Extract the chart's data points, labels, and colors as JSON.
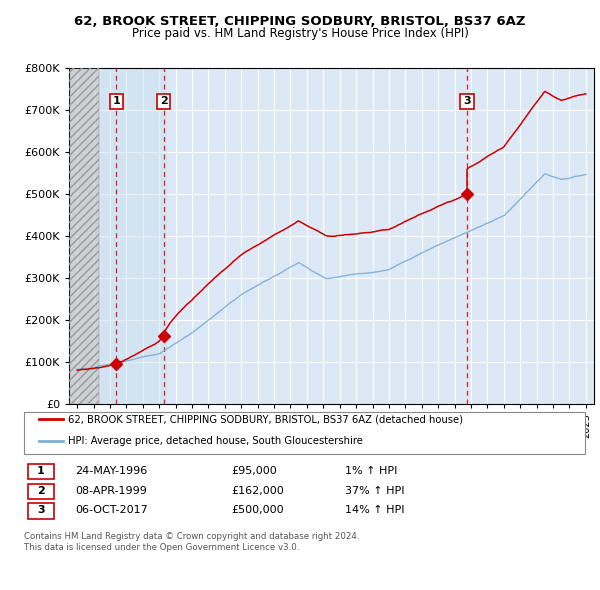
{
  "title": "62, BROOK STREET, CHIPPING SODBURY, BRISTOL, BS37 6AZ",
  "subtitle": "Price paid vs. HM Land Registry's House Price Index (HPI)",
  "ylim": [
    0,
    800000
  ],
  "yticks": [
    0,
    100000,
    200000,
    300000,
    400000,
    500000,
    600000,
    700000,
    800000
  ],
  "ytick_labels": [
    "£0",
    "£100K",
    "£200K",
    "£300K",
    "£400K",
    "£500K",
    "£600K",
    "£700K",
    "£800K"
  ],
  "xlim": [
    1993.5,
    2025.5
  ],
  "xticks": [
    1994,
    1995,
    1996,
    1997,
    1998,
    1999,
    2000,
    2001,
    2002,
    2003,
    2004,
    2005,
    2006,
    2007,
    2008,
    2009,
    2010,
    2011,
    2012,
    2013,
    2014,
    2015,
    2016,
    2017,
    2018,
    2019,
    2020,
    2021,
    2022,
    2023,
    2024,
    2025
  ],
  "sale_dates": [
    1996.39,
    1999.27,
    2017.76
  ],
  "sale_prices": [
    95000,
    162000,
    500000
  ],
  "sale_labels": [
    "1",
    "2",
    "3"
  ],
  "legend_entries": [
    "62, BROOK STREET, CHIPPING SODBURY, BRISTOL, BS37 6AZ (detached house)",
    "HPI: Average price, detached house, South Gloucestershire"
  ],
  "legend_colors": [
    "#cc0000",
    "#7bafd4"
  ],
  "table_rows": [
    [
      "1",
      "24-MAY-1996",
      "£95,000",
      "1% ↑ HPI"
    ],
    [
      "2",
      "08-APR-1999",
      "£162,000",
      "37% ↑ HPI"
    ],
    [
      "3",
      "06-OCT-2017",
      "£500,000",
      "14% ↑ HPI"
    ]
  ],
  "footnote": "Contains HM Land Registry data © Crown copyright and database right 2024.\nThis data is licensed under the Open Government Licence v3.0.",
  "plot_bg_color": "#dce8f5",
  "grid_color": "#ffffff",
  "hatch_end_year": 1995.3,
  "sale2_shade_end": 1999.5
}
